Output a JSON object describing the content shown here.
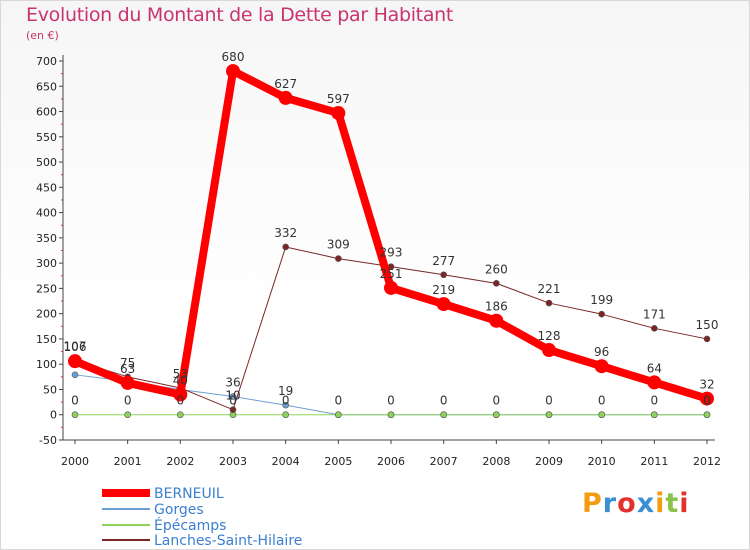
{
  "header": {
    "title": "Evolution du Montant de la Dette par Habitant",
    "unit": "(en €)"
  },
  "logo": {
    "text": "Proxiti",
    "letters": [
      {
        "ch": "P",
        "color": "#f39c12"
      },
      {
        "ch": "r",
        "color": "#3a8fd6"
      },
      {
        "ch": "o",
        "color": "#e4312b"
      },
      {
        "ch": "x",
        "color": "#3a8fd6"
      },
      {
        "ch": "i",
        "color": "#f39c12"
      },
      {
        "ch": "t",
        "color": "#8bc34a"
      },
      {
        "ch": "i",
        "color": "#e4312b"
      }
    ]
  },
  "chart_data": {
    "type": "line",
    "title": "Evolution du Montant de la Dette par Habitant",
    "ylabel": "(en €)",
    "xlabel": "",
    "ylim": [
      -50,
      700
    ],
    "yticks": [
      -50,
      0,
      50,
      100,
      150,
      200,
      250,
      300,
      350,
      400,
      450,
      500,
      550,
      600,
      650,
      700
    ],
    "x": [
      "2000",
      "2001",
      "2002",
      "2003",
      "2004",
      "2005",
      "2006",
      "2007",
      "2008",
      "2009",
      "2010",
      "2011",
      "2012"
    ],
    "legend_position": "bottom-left",
    "grid": false,
    "series": [
      {
        "name": "BERNEUIL",
        "color": "#ff0000",
        "width": 8,
        "marker": 7,
        "values": [
          106,
          63,
          40,
          680,
          627,
          597,
          251,
          219,
          186,
          128,
          96,
          64,
          32
        ],
        "labels": [
          "106",
          "63",
          "40",
          "680",
          "627",
          "597",
          "251",
          "219",
          "186",
          "128",
          "96",
          "64",
          "32"
        ]
      },
      {
        "name": "Gorges",
        "color": "#6b9fd4",
        "width": 1,
        "marker": 3,
        "values": [
          79,
          66,
          50,
          36,
          19,
          0,
          0,
          0,
          0,
          0,
          0,
          0,
          0
        ],
        "labels": [
          "",
          "",
          "",
          "36",
          "19",
          "0",
          "0",
          "0",
          "0",
          "0",
          "0",
          "0",
          "0"
        ]
      },
      {
        "name": "Épécamps",
        "color": "#8ed35a",
        "width": 1,
        "marker": 3,
        "values": [
          0,
          0,
          0,
          0,
          0,
          0,
          0,
          0,
          0,
          0,
          0,
          0,
          0
        ],
        "labels": [
          "0",
          "0",
          "0",
          "0",
          "0",
          "",
          "",
          "",
          "",
          "",
          "",
          "",
          "0"
        ]
      },
      {
        "name": "Lanches-Saint-Hilaire",
        "color": "#7a2626",
        "width": 1,
        "marker": 3,
        "values": [
          107,
          75,
          53,
          10,
          332,
          309,
          293,
          277,
          260,
          221,
          199,
          171,
          150
        ],
        "labels": [
          "107",
          "75",
          "53",
          "10",
          "332",
          "309",
          "293",
          "277",
          "260",
          "221",
          "199",
          "171",
          "150"
        ]
      }
    ]
  }
}
